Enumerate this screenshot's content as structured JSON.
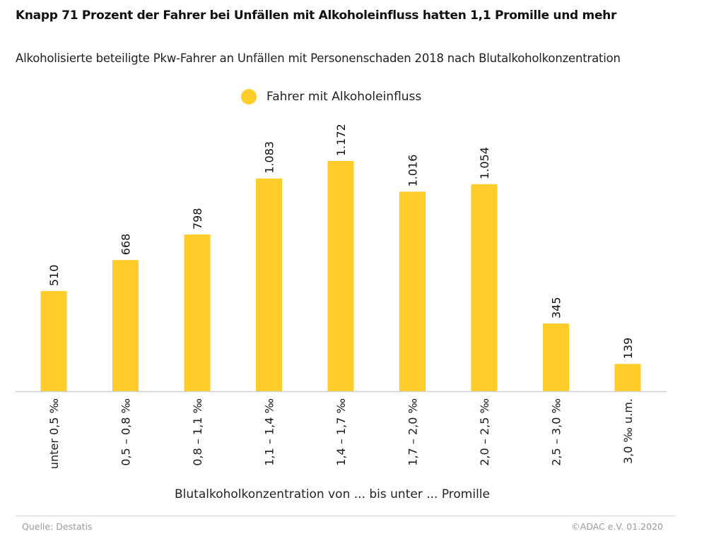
{
  "colors": {
    "bar": "#FFCC29",
    "axis": "#cfcfcf",
    "text": "#1a1a1a",
    "muted": "#9a9a9a"
  },
  "footer": {
    "source": "Quelle: Destatis",
    "copyright": "©ADAC e.V.  01.2020"
  },
  "chart_data": {
    "type": "bar",
    "title": "Knapp 71 Prozent der Fahrer bei Unfällen mit Alkoholeinfluss hatten 1,1 Promille und mehr",
    "subtitle": "Alkoholisierte beteiligte Pkw-Fahrer an Unfällen mit Personenschaden 2018 nach Blutalkoholkonzentration",
    "legend": {
      "entries": [
        "Fahrer mit Alkoholeinfluss"
      ],
      "position": "top-center"
    },
    "xlabel": "Blutalkoholkonzentration von ... bis unter ... Promille",
    "ylabel": "",
    "grid": false,
    "ylim": [
      0,
      1200
    ],
    "categories": [
      "unter 0,5 ‰",
      "0,5 – 0,8 ‰",
      "0,8 – 1,1 ‰",
      "1,1 – 1,4 ‰",
      "1,4 – 1,7 ‰",
      "1,7 – 2,0 ‰",
      "2,0 – 2,5 ‰",
      "2,5 – 3,0 ‰",
      "3,0 ‰ u.m."
    ],
    "series": [
      {
        "name": "Fahrer mit Alkoholeinfluss",
        "values": [
          510,
          668,
          798,
          1083,
          1172,
          1016,
          1054,
          345,
          139
        ],
        "labels": [
          "510",
          "668",
          "798",
          "1.083",
          "1.172",
          "1.016",
          "1.054",
          "345",
          "139"
        ]
      }
    ]
  }
}
